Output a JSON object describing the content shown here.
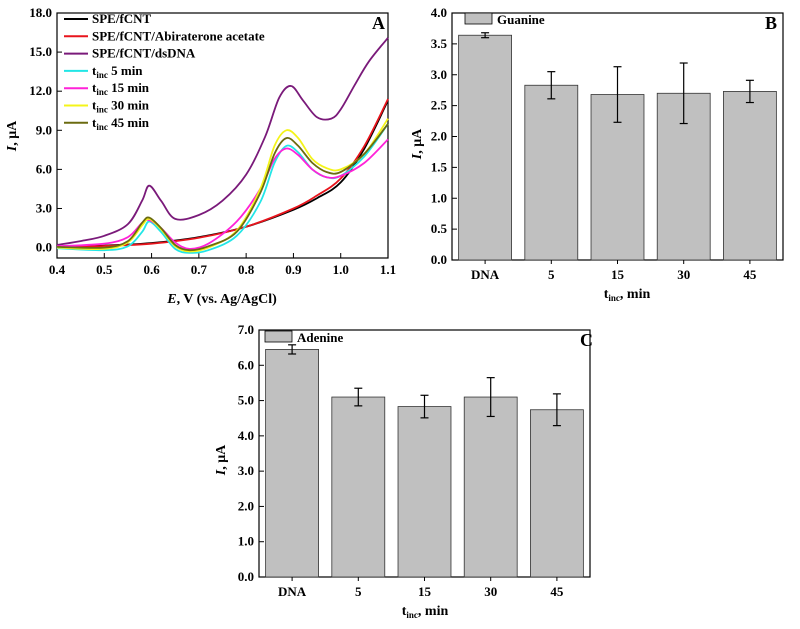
{
  "chart_data": [
    {
      "panel_letter": "A",
      "type": "line",
      "xlabel_italic": "E",
      "xlabel_rest": ", V (vs. Ag/AgCl)",
      "ylabel_italic": "I",
      "ylabel_rest": ", μA",
      "xlim": [
        0.4,
        1.1
      ],
      "ylim": [
        -0.8,
        18.0
      ],
      "xticks": [
        "0.4",
        "0.5",
        "0.6",
        "0.7",
        "0.8",
        "0.9",
        "1.0",
        "1.1"
      ],
      "xtick_values": [
        0.4,
        0.5,
        0.6,
        0.7,
        0.8,
        0.9,
        1.0,
        1.1
      ],
      "yticks": [
        "0.0",
        "3.0",
        "6.0",
        "9.0",
        "12.0",
        "15.0",
        "18.0"
      ],
      "ytick_values": [
        0,
        3,
        6,
        9,
        12,
        15,
        18
      ],
      "legend_position": "top-left",
      "series": [
        {
          "name": "SPE/fCNT",
          "sub": "",
          "suffix": "",
          "color": "#000000",
          "x": [
            0.4,
            0.5,
            0.6,
            0.7,
            0.8,
            0.9,
            0.95,
            1.0,
            1.05,
            1.1
          ],
          "y": [
            0.05,
            0.15,
            0.35,
            0.8,
            1.6,
            2.9,
            3.8,
            5.0,
            7.6,
            11.3
          ]
        },
        {
          "name": "SPE/fCNT/Abiraterone acetate",
          "sub": "",
          "suffix": "",
          "color": "#e8141c",
          "x": [
            0.4,
            0.5,
            0.6,
            0.7,
            0.8,
            0.9,
            0.95,
            1.0,
            1.05,
            1.1
          ],
          "y": [
            0.0,
            0.12,
            0.3,
            0.75,
            1.6,
            3.0,
            4.0,
            5.3,
            7.8,
            11.4
          ]
        },
        {
          "name": "SPE/fCNT/dsDNA",
          "sub": "",
          "suffix": "",
          "color": "#7a1a7a",
          "x": [
            0.4,
            0.45,
            0.5,
            0.55,
            0.58,
            0.595,
            0.62,
            0.65,
            0.7,
            0.75,
            0.8,
            0.84,
            0.87,
            0.895,
            0.92,
            0.95,
            0.98,
            1.0,
            1.03,
            1.06,
            1.1
          ],
          "y": [
            0.2,
            0.5,
            0.9,
            1.8,
            3.6,
            4.75,
            3.6,
            2.2,
            2.5,
            3.6,
            5.6,
            8.5,
            11.5,
            12.4,
            11.3,
            10.0,
            9.9,
            10.6,
            12.5,
            14.3,
            16.1
          ]
        },
        {
          "name": "t",
          "sub": "inc",
          "suffix": " 5 min",
          "color": "#22e6e6",
          "x": [
            0.4,
            0.5,
            0.55,
            0.58,
            0.595,
            0.62,
            0.65,
            0.68,
            0.72,
            0.78,
            0.83,
            0.86,
            0.885,
            0.91,
            0.94,
            0.97,
            1.0,
            1.05,
            1.1
          ],
          "y": [
            -0.05,
            -0.2,
            0.1,
            1.2,
            2.0,
            1.2,
            -0.1,
            -0.4,
            -0.2,
            0.9,
            3.5,
            6.5,
            7.8,
            7.3,
            6.0,
            5.4,
            5.5,
            7.0,
            9.5
          ]
        },
        {
          "name": "t",
          "sub": "inc",
          "suffix": " 15 min",
          "color": "#ff22d8",
          "x": [
            0.4,
            0.5,
            0.55,
            0.58,
            0.595,
            0.62,
            0.65,
            0.68,
            0.72,
            0.78,
            0.83,
            0.86,
            0.885,
            0.91,
            0.94,
            0.97,
            1.0,
            1.05,
            1.1
          ],
          "y": [
            0.1,
            0.3,
            0.8,
            1.9,
            2.1,
            1.5,
            0.4,
            -0.1,
            0.3,
            2.0,
            4.5,
            6.8,
            7.6,
            7.1,
            6.0,
            5.4,
            5.5,
            6.5,
            8.3
          ]
        },
        {
          "name": "t",
          "sub": "inc",
          "suffix": " 30 min",
          "color": "#f4f41a",
          "x": [
            0.4,
            0.5,
            0.55,
            0.58,
            0.595,
            0.62,
            0.65,
            0.68,
            0.72,
            0.78,
            0.83,
            0.86,
            0.885,
            0.91,
            0.94,
            0.97,
            1.0,
            1.05,
            1.1
          ],
          "y": [
            0.0,
            -0.1,
            0.4,
            1.7,
            2.2,
            1.4,
            0.1,
            -0.3,
            0.0,
            1.3,
            4.5,
            7.8,
            9.0,
            8.4,
            6.8,
            6.1,
            6.0,
            7.2,
            9.9
          ]
        },
        {
          "name": "t",
          "sub": "inc",
          "suffix": " 45 min",
          "color": "#6b6b10",
          "x": [
            0.4,
            0.5,
            0.55,
            0.58,
            0.595,
            0.62,
            0.65,
            0.68,
            0.72,
            0.78,
            0.83,
            0.86,
            0.885,
            0.91,
            0.94,
            0.97,
            1.0,
            1.05,
            1.1
          ],
          "y": [
            0.05,
            0.0,
            0.5,
            1.9,
            2.3,
            1.5,
            0.2,
            -0.2,
            0.1,
            1.2,
            4.2,
            7.2,
            8.4,
            7.8,
            6.5,
            5.8,
            5.8,
            7.2,
            9.5
          ]
        }
      ]
    },
    {
      "panel_letter": "B",
      "type": "bar",
      "legend_label": "Guanine",
      "legend_position": "top-left",
      "categories": [
        "DNA",
        "5",
        "15",
        "30",
        "45"
      ],
      "values": [
        3.64,
        2.83,
        2.68,
        2.7,
        2.73
      ],
      "errors": [
        0.04,
        0.22,
        0.45,
        0.49,
        0.18
      ],
      "ylim": [
        0.0,
        4.0
      ],
      "yticks": [
        "0.0",
        "0.5",
        "1.0",
        "1.5",
        "2.0",
        "2.5",
        "3.0",
        "3.5",
        "4.0"
      ],
      "ytick_values": [
        0,
        0.5,
        1.0,
        1.5,
        2.0,
        2.5,
        3.0,
        3.5,
        4.0
      ],
      "xlabel_main": "t",
      "xlabel_sub": "inc",
      "xlabel_rest": ", min",
      "ylabel_italic": "I",
      "ylabel_rest": ", μA",
      "bar_color": "#c0c0c0"
    },
    {
      "panel_letter": "C",
      "type": "bar",
      "legend_label": "Adenine",
      "legend_position": "top-left",
      "categories": [
        "DNA",
        "5",
        "15",
        "30",
        "45"
      ],
      "values": [
        6.45,
        5.1,
        4.83,
        5.1,
        4.74
      ],
      "errors": [
        0.13,
        0.25,
        0.32,
        0.55,
        0.45
      ],
      "ylim": [
        0.0,
        7.0
      ],
      "yticks": [
        "0.0",
        "1.0",
        "2.0",
        "3.0",
        "4.0",
        "5.0",
        "6.0",
        "7.0"
      ],
      "ytick_values": [
        0,
        1,
        2,
        3,
        4,
        5,
        6,
        7
      ],
      "xlabel_main": "t",
      "xlabel_sub": "inc",
      "xlabel_rest": ", min",
      "ylabel_italic": "I",
      "ylabel_rest": ", μA",
      "bar_color": "#c0c0c0"
    }
  ]
}
